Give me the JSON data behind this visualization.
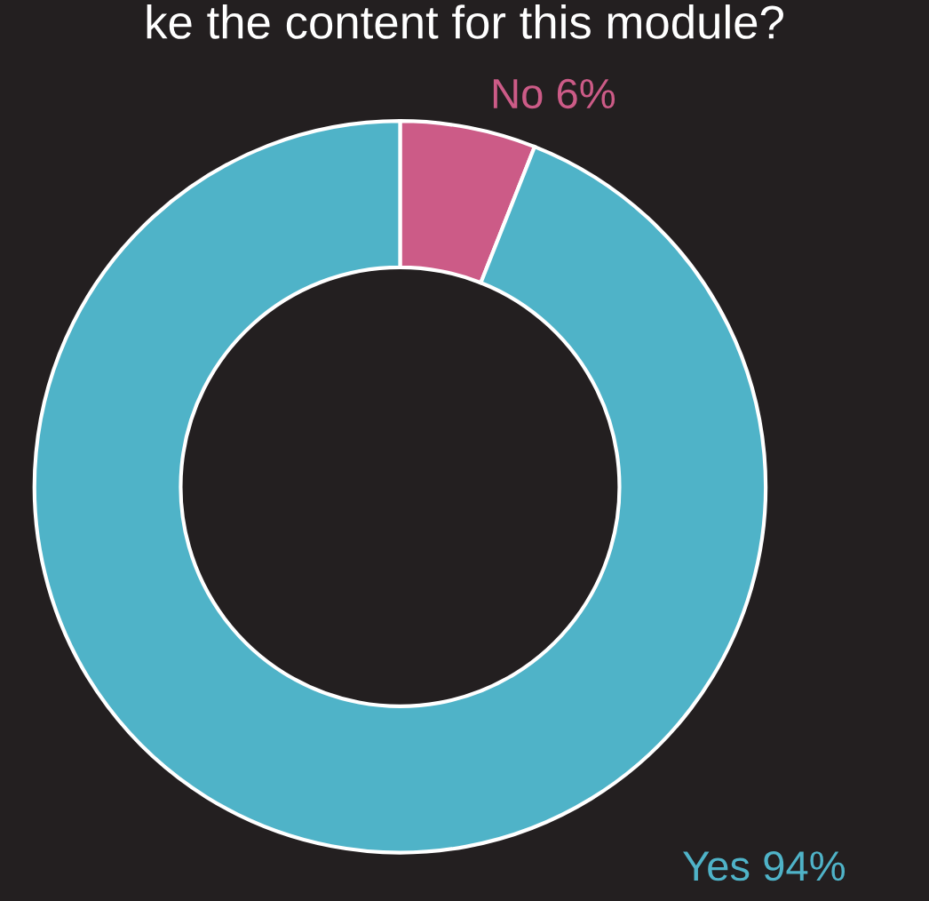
{
  "chart_data": {
    "type": "donut",
    "title": "ke the content for this module?",
    "categories": [
      "No",
      "Yes"
    ],
    "values": [
      6,
      94
    ],
    "colors": [
      "#cc5b87",
      "#4fb3c8"
    ],
    "value_labels": [
      "6%",
      "94%"
    ]
  }
}
